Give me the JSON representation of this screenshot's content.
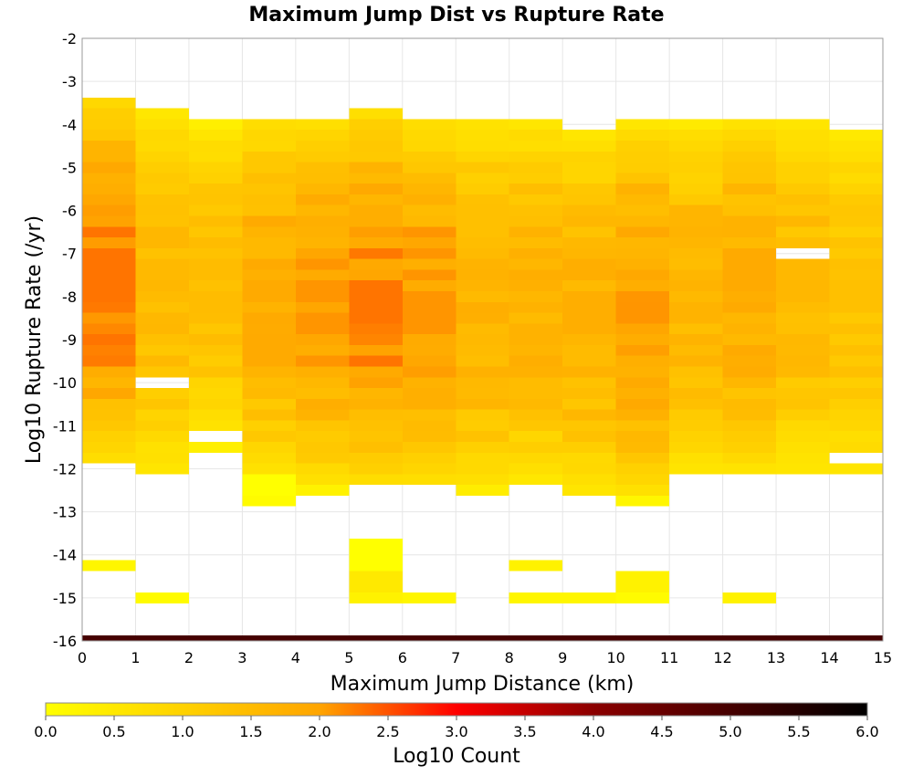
{
  "chart_data": {
    "type": "heatmap",
    "title": "Maximum Jump Dist vs Rupture Rate",
    "xlabel": "Maximum Jump Distance (km)",
    "ylabel": "Log10 Rupture Rate (/yr)",
    "xlim": [
      0,
      15
    ],
    "ylim": [
      -16,
      -2
    ],
    "x_ticks": [
      "0",
      "1",
      "2",
      "3",
      "4",
      "5",
      "6",
      "7",
      "8",
      "9",
      "10",
      "11",
      "12",
      "13",
      "14",
      "15"
    ],
    "y_ticks": [
      "-16",
      "-15",
      "-14",
      "-13",
      "-12",
      "-11",
      "-10",
      "-9",
      "-8",
      "-7",
      "-6",
      "-5",
      "-4",
      "-3",
      "-2"
    ],
    "x_bin_width_km": 1,
    "y_bin_width": 0.25,
    "grid": true,
    "colorbar": {
      "label": "Log10 Count",
      "range": [
        0.0,
        6.0
      ],
      "ticks": [
        "0.0",
        "0.5",
        "1.0",
        "1.5",
        "2.0",
        "2.5",
        "3.0",
        "3.5",
        "4.0",
        "4.5",
        "5.0",
        "5.5",
        "6.0"
      ],
      "colors": [
        "#ffff00",
        "#ffa500",
        "#ff0000",
        "#8b0000",
        "#000000"
      ]
    },
    "column_ranges": [
      {
        "x": [
          0,
          1
        ],
        "y_range": [
          -11.875,
          -3.375
        ],
        "log10_count_range": [
          0.3,
          2.3
        ]
      },
      {
        "x": [
          1,
          2
        ],
        "y_range": [
          -12.125,
          -3.625
        ],
        "log10_count_range": [
          0.1,
          1.6
        ]
      },
      {
        "x": [
          2,
          3
        ],
        "y_range": [
          -11.625,
          -3.875
        ],
        "log10_count_range": [
          0.0,
          1.5
        ]
      },
      {
        "x": [
          3,
          4
        ],
        "y_range": [
          -12.125,
          -3.875
        ],
        "log10_count_range": [
          0.2,
          1.9
        ]
      },
      {
        "x": [
          4,
          5
        ],
        "y_range": [
          -12.375,
          -3.875
        ],
        "log10_count_range": [
          0.2,
          2.1
        ]
      },
      {
        "x": [
          5,
          6
        ],
        "y_range": [
          -12.375,
          -3.625
        ],
        "log10_count_range": [
          0.2,
          2.3
        ]
      },
      {
        "x": [
          6,
          7
        ],
        "y_range": [
          -12.375,
          -3.875
        ],
        "log10_count_range": [
          0.2,
          2.1
        ]
      },
      {
        "x": [
          7,
          8
        ],
        "y_range": [
          -12.625,
          -3.875
        ],
        "log10_count_range": [
          0.1,
          1.8
        ]
      },
      {
        "x": [
          8,
          9
        ],
        "y_range": [
          -12.375,
          -3.875
        ],
        "log10_count_range": [
          0.1,
          1.8
        ]
      },
      {
        "x": [
          9,
          10
        ],
        "y_range": [
          -12.625,
          -4.125
        ],
        "log10_count_range": [
          0.1,
          1.8
        ]
      },
      {
        "x": [
          10,
          11
        ],
        "y_range": [
          -12.875,
          -3.875
        ],
        "log10_count_range": [
          0.1,
          2.1
        ]
      },
      {
        "x": [
          11,
          12
        ],
        "y_range": [
          -12.125,
          -3.875
        ],
        "log10_count_range": [
          0.1,
          1.7
        ]
      },
      {
        "x": [
          12,
          13
        ],
        "y_range": [
          -12.125,
          -3.875
        ],
        "log10_count_range": [
          0.2,
          1.9
        ]
      },
      {
        "x": [
          13,
          14
        ],
        "y_range": [
          -12.125,
          -3.875
        ],
        "log10_count_range": [
          0.1,
          1.6
        ]
      },
      {
        "x": [
          14,
          15
        ],
        "y_range": [
          -12.125,
          -4.125
        ],
        "log10_count_range": [
          0.2,
          1.4
        ]
      }
    ],
    "outlier_cells": [
      {
        "x": [
          0,
          1
        ],
        "y": [
          -14.375,
          -14.125
        ],
        "log10_count": 0.2
      },
      {
        "x": [
          1,
          2
        ],
        "y": [
          -14.875,
          -15.125
        ],
        "log10_count": 0.1
      },
      {
        "x": [
          3,
          4
        ],
        "y": [
          -12.125,
          -12.625
        ],
        "log10_count": 0.0
      },
      {
        "x": [
          3,
          4
        ],
        "y": [
          -12.625,
          -12.875
        ],
        "log10_count": 0.1
      },
      {
        "x": [
          4,
          5
        ],
        "y": [
          -12.375,
          -12.625
        ],
        "log10_count": 0.3
      },
      {
        "x": [
          5,
          6
        ],
        "y": [
          -13.625,
          -14.375
        ],
        "log10_count": 0.0
      },
      {
        "x": [
          5,
          6
        ],
        "y": [
          -14.375,
          -14.875
        ],
        "log10_count": 0.5
      },
      {
        "x": [
          5,
          6
        ],
        "y": [
          -14.875,
          -15.125
        ],
        "log10_count": 0.3
      },
      {
        "x": [
          6,
          7
        ],
        "y": [
          -14.875,
          -15.125
        ],
        "log10_count": 0.2
      },
      {
        "x": [
          7,
          8
        ],
        "y": [
          -12.375,
          -12.625
        ],
        "log10_count": 0.4
      },
      {
        "x": [
          8,
          9
        ],
        "y": [
          -14.125,
          -14.375
        ],
        "log10_count": 0.3
      },
      {
        "x": [
          8,
          9
        ],
        "y": [
          -14.875,
          -15.125
        ],
        "log10_count": 0.2
      },
      {
        "x": [
          9,
          10
        ],
        "y": [
          -14.875,
          -15.125
        ],
        "log10_count": 0.2
      },
      {
        "x": [
          10,
          11
        ],
        "y": [
          -12.625,
          -12.875
        ],
        "log10_count": 0.2
      },
      {
        "x": [
          10,
          11
        ],
        "y": [
          -14.375,
          -14.875
        ],
        "log10_count": 0.3
      },
      {
        "x": [
          10,
          11
        ],
        "y": [
          -14.875,
          -15.125
        ],
        "log10_count": 0.1
      },
      {
        "x": [
          12,
          13
        ],
        "y": [
          -14.875,
          -15.125
        ],
        "log10_count": 0.3
      },
      {
        "x": [
          0,
          15
        ],
        "y": [
          -15.875,
          -16.0
        ],
        "log10_count": 5.0
      }
    ],
    "empty_cells": [
      {
        "x": [
          1,
          2
        ],
        "y": [
          -9.875,
          -10.125
        ]
      },
      {
        "x": [
          2,
          3
        ],
        "y": [
          -11.125,
          -11.375
        ]
      },
      {
        "x": [
          13,
          14
        ],
        "y": [
          -6.875,
          -7.125
        ]
      },
      {
        "x": [
          14,
          15
        ],
        "y": [
          -11.625,
          -11.875
        ]
      }
    ]
  }
}
